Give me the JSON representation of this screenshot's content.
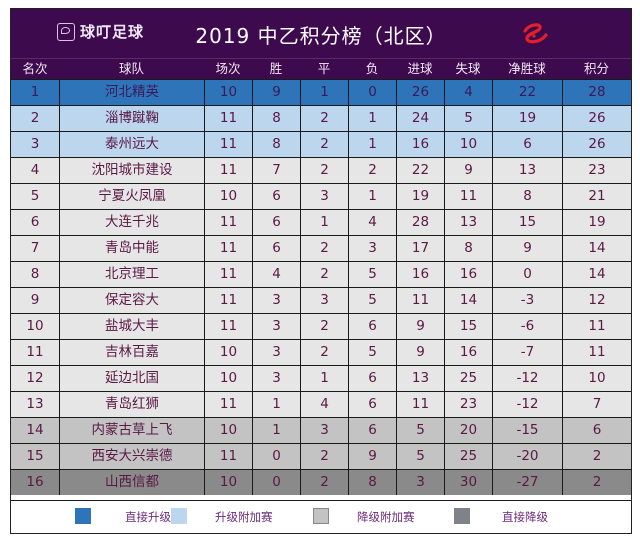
{
  "header": {
    "brand": "球叮足球",
    "title": "2019 中乙积分榜（北区）",
    "league_logo_color": "#e0202a"
  },
  "columns": [
    "名次",
    "球队",
    "场次",
    "胜",
    "平",
    "负",
    "进球",
    "失球",
    "净胜球",
    "积分"
  ],
  "rows": [
    {
      "rank": "1",
      "team": "河北精英",
      "played": "10",
      "win": "9",
      "draw": "1",
      "loss": "0",
      "gf": "26",
      "ga": "4",
      "gd": "22",
      "pts": "28",
      "zone": "promo"
    },
    {
      "rank": "2",
      "team": "淄博蹴鞠",
      "played": "11",
      "win": "8",
      "draw": "2",
      "loss": "1",
      "gf": "24",
      "ga": "5",
      "gd": "19",
      "pts": "26",
      "zone": "playoff"
    },
    {
      "rank": "3",
      "team": "泰州远大",
      "played": "11",
      "win": "8",
      "draw": "2",
      "loss": "1",
      "gf": "16",
      "ga": "10",
      "gd": "6",
      "pts": "26",
      "zone": "playoff"
    },
    {
      "rank": "4",
      "team": "沈阳城市建设",
      "played": "11",
      "win": "7",
      "draw": "2",
      "loss": "2",
      "gf": "22",
      "ga": "9",
      "gd": "13",
      "pts": "23",
      "zone": "mid"
    },
    {
      "rank": "5",
      "team": "宁夏火凤凰",
      "played": "10",
      "win": "6",
      "draw": "3",
      "loss": "1",
      "gf": "19",
      "ga": "11",
      "gd": "8",
      "pts": "21",
      "zone": "mid"
    },
    {
      "rank": "6",
      "team": "大连千兆",
      "played": "11",
      "win": "6",
      "draw": "1",
      "loss": "4",
      "gf": "28",
      "ga": "13",
      "gd": "15",
      "pts": "19",
      "zone": "mid"
    },
    {
      "rank": "7",
      "team": "青岛中能",
      "played": "11",
      "win": "6",
      "draw": "2",
      "loss": "3",
      "gf": "17",
      "ga": "8",
      "gd": "9",
      "pts": "14",
      "zone": "mid"
    },
    {
      "rank": "8",
      "team": "北京理工",
      "played": "11",
      "win": "4",
      "draw": "2",
      "loss": "5",
      "gf": "16",
      "ga": "16",
      "gd": "0",
      "pts": "14",
      "zone": "mid"
    },
    {
      "rank": "9",
      "team": "保定容大",
      "played": "11",
      "win": "3",
      "draw": "3",
      "loss": "5",
      "gf": "11",
      "ga": "14",
      "gd": "-3",
      "pts": "12",
      "zone": "mid"
    },
    {
      "rank": "10",
      "team": "盐城大丰",
      "played": "11",
      "win": "3",
      "draw": "2",
      "loss": "6",
      "gf": "9",
      "ga": "15",
      "gd": "-6",
      "pts": "11",
      "zone": "mid"
    },
    {
      "rank": "11",
      "team": "吉林百嘉",
      "played": "10",
      "win": "3",
      "draw": "2",
      "loss": "5",
      "gf": "9",
      "ga": "16",
      "gd": "-7",
      "pts": "11",
      "zone": "mid"
    },
    {
      "rank": "12",
      "team": "延边北国",
      "played": "10",
      "win": "3",
      "draw": "1",
      "loss": "6",
      "gf": "13",
      "ga": "25",
      "gd": "-12",
      "pts": "10",
      "zone": "mid"
    },
    {
      "rank": "13",
      "team": "青岛红狮",
      "played": "11",
      "win": "1",
      "draw": "4",
      "loss": "6",
      "gf": "11",
      "ga": "23",
      "gd": "-12",
      "pts": "7",
      "zone": "mid"
    },
    {
      "rank": "14",
      "team": "内蒙古草上飞",
      "played": "10",
      "win": "1",
      "draw": "3",
      "loss": "6",
      "gf": "5",
      "ga": "20",
      "gd": "-15",
      "pts": "6",
      "zone": "releg-po"
    },
    {
      "rank": "15",
      "team": "西安大兴崇德",
      "played": "11",
      "win": "0",
      "draw": "2",
      "loss": "9",
      "gf": "5",
      "ga": "25",
      "gd": "-20",
      "pts": "2",
      "zone": "releg-po"
    },
    {
      "rank": "16",
      "team": "山西信都",
      "played": "10",
      "win": "0",
      "draw": "2",
      "loss": "8",
      "gf": "3",
      "ga": "30",
      "gd": "-27",
      "pts": "2",
      "zone": "releg"
    }
  ],
  "legend": [
    {
      "label": "直接升级",
      "color": "#2e74b8"
    },
    {
      "label": "升级附加赛",
      "color": "#bcd6ee"
    },
    {
      "label": "降级附加赛",
      "color": "#c3c3c3"
    },
    {
      "label": "直接降级",
      "color": "#7f8288"
    }
  ]
}
